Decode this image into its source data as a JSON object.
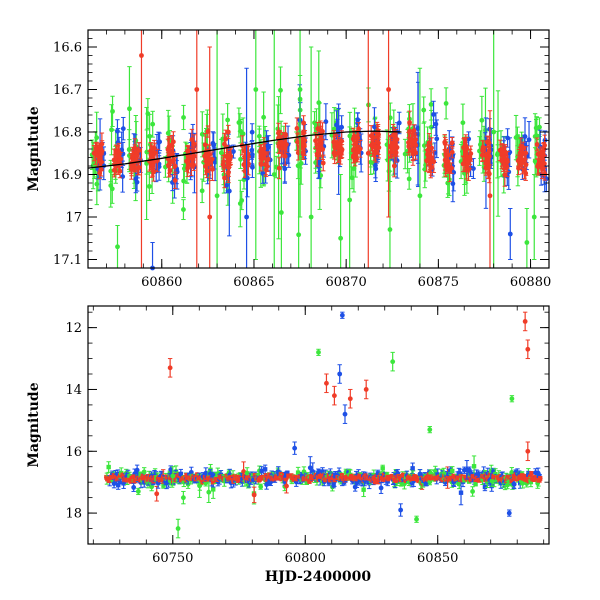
{
  "chart_data": [
    {
      "type": "scatter",
      "title": "",
      "xlabel": "",
      "ylabel": "Magnitude",
      "xlim": [
        60856,
        60881
      ],
      "ylim": [
        17.12,
        16.56
      ],
      "y_inverted": true,
      "xticks": [
        60860,
        60865,
        60870,
        60875,
        60880
      ],
      "yticks": [
        16.6,
        16.7,
        16.8,
        16.9,
        17
      ],
      "ytick_labels": [
        "16.6",
        "16.7",
        "16.8",
        "16.9",
        "17"
      ],
      "ytick_extra_label": "17.1",
      "grid": false,
      "trend_curve": [
        {
          "x": 60856.0,
          "y": 16.885
        },
        {
          "x": 60858.0,
          "y": 16.875
        },
        {
          "x": 60860.0,
          "y": 16.862
        },
        {
          "x": 60862.0,
          "y": 16.848
        },
        {
          "x": 60864.0,
          "y": 16.834
        },
        {
          "x": 60866.0,
          "y": 16.82
        },
        {
          "x": 60868.0,
          "y": 16.808
        },
        {
          "x": 60870.0,
          "y": 16.8
        },
        {
          "x": 60871.5,
          "y": 16.798
        },
        {
          "x": 60873.0,
          "y": 16.8
        }
      ],
      "series_colors": {
        "red": "#f03c28",
        "green": "#3ce63c",
        "blue": "#1e50e6"
      }
    },
    {
      "type": "scatter",
      "title": "",
      "xlabel": "HJD-2400000",
      "ylabel": "Magnitude",
      "xlim": [
        60718,
        60892
      ],
      "ylim": [
        19.0,
        11.3
      ],
      "y_inverted": true,
      "xticks": [
        60750,
        60800,
        60850
      ],
      "yticks": [
        12,
        14,
        16,
        18
      ],
      "grid": false,
      "series_colors": {
        "red": "#f03c28",
        "green": "#3ce63c",
        "blue": "#1e50e6"
      },
      "outliers": [
        {
          "x": 60749,
          "y": 13.3,
          "err": 0.3,
          "color": "red"
        },
        {
          "x": 60750,
          "y": 16.8,
          "err": 0.3,
          "color": "green"
        },
        {
          "x": 60752,
          "y": 18.5,
          "err": 0.3,
          "color": "green"
        },
        {
          "x": 60805,
          "y": 12.8,
          "err": 0.1,
          "color": "green"
        },
        {
          "x": 60808,
          "y": 13.8,
          "err": 0.3,
          "color": "red"
        },
        {
          "x": 60811,
          "y": 14.2,
          "err": 0.3,
          "color": "red"
        },
        {
          "x": 60813,
          "y": 13.5,
          "err": 0.3,
          "color": "blue"
        },
        {
          "x": 60814,
          "y": 11.6,
          "err": 0.1,
          "color": "blue"
        },
        {
          "x": 60815,
          "y": 14.8,
          "err": 0.3,
          "color": "blue"
        },
        {
          "x": 60817,
          "y": 14.3,
          "err": 0.3,
          "color": "red"
        },
        {
          "x": 60823,
          "y": 14.0,
          "err": 0.3,
          "color": "red"
        },
        {
          "x": 60833,
          "y": 13.1,
          "err": 0.3,
          "color": "green"
        },
        {
          "x": 60847,
          "y": 15.3,
          "err": 0.1,
          "color": "green"
        },
        {
          "x": 60878,
          "y": 14.3,
          "err": 0.1,
          "color": "green"
        },
        {
          "x": 60883,
          "y": 11.8,
          "err": 0.3,
          "color": "red"
        },
        {
          "x": 60884,
          "y": 12.7,
          "err": 0.3,
          "color": "red"
        },
        {
          "x": 60861,
          "y": 16.6,
          "err": 0.3,
          "color": "blue"
        },
        {
          "x": 60884,
          "y": 16.0,
          "err": 0.3,
          "color": "red"
        },
        {
          "x": 60796,
          "y": 15.9,
          "err": 0.2,
          "color": "blue"
        },
        {
          "x": 60877,
          "y": 18.0,
          "err": 0.1,
          "color": "blue"
        },
        {
          "x": 60737,
          "y": 17.3,
          "err": 0.1,
          "color": "green"
        },
        {
          "x": 60754,
          "y": 17.5,
          "err": 0.2,
          "color": "green"
        },
        {
          "x": 60842,
          "y": 18.2,
          "err": 0.1,
          "color": "green"
        },
        {
          "x": 60836,
          "y": 17.9,
          "err": 0.2,
          "color": "blue"
        }
      ]
    }
  ]
}
